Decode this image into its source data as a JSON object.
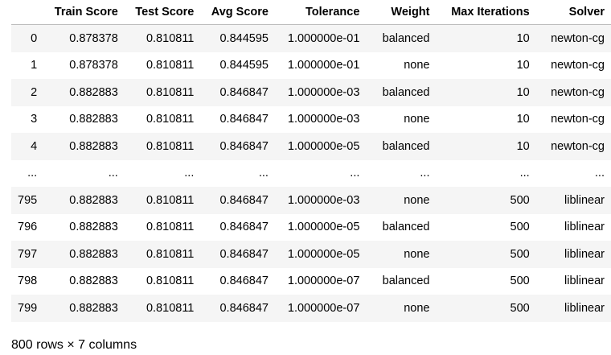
{
  "table": {
    "columns": [
      "",
      "Train Score",
      "Test Score",
      "Avg Score",
      "Tolerance",
      "Weight",
      "Max Iterations",
      "Solver"
    ],
    "rows": [
      [
        "0",
        "0.878378",
        "0.810811",
        "0.844595",
        "1.000000e-01",
        "balanced",
        "10",
        "newton-cg"
      ],
      [
        "1",
        "0.878378",
        "0.810811",
        "0.844595",
        "1.000000e-01",
        "none",
        "10",
        "newton-cg"
      ],
      [
        "2",
        "0.882883",
        "0.810811",
        "0.846847",
        "1.000000e-03",
        "balanced",
        "10",
        "newton-cg"
      ],
      [
        "3",
        "0.882883",
        "0.810811",
        "0.846847",
        "1.000000e-03",
        "none",
        "10",
        "newton-cg"
      ],
      [
        "4",
        "0.882883",
        "0.810811",
        "0.846847",
        "1.000000e-05",
        "balanced",
        "10",
        "newton-cg"
      ],
      [
        "...",
        "...",
        "...",
        "...",
        "...",
        "...",
        "...",
        "..."
      ],
      [
        "795",
        "0.882883",
        "0.810811",
        "0.846847",
        "1.000000e-03",
        "none",
        "500",
        "liblinear"
      ],
      [
        "796",
        "0.882883",
        "0.810811",
        "0.846847",
        "1.000000e-05",
        "balanced",
        "500",
        "liblinear"
      ],
      [
        "797",
        "0.882883",
        "0.810811",
        "0.846847",
        "1.000000e-05",
        "none",
        "500",
        "liblinear"
      ],
      [
        "798",
        "0.882883",
        "0.810811",
        "0.846847",
        "1.000000e-07",
        "balanced",
        "500",
        "liblinear"
      ],
      [
        "799",
        "0.882883",
        "0.810811",
        "0.846847",
        "1.000000e-07",
        "none",
        "500",
        "liblinear"
      ]
    ]
  },
  "footer": {
    "shape_text": "800 rows × 7 columns"
  }
}
